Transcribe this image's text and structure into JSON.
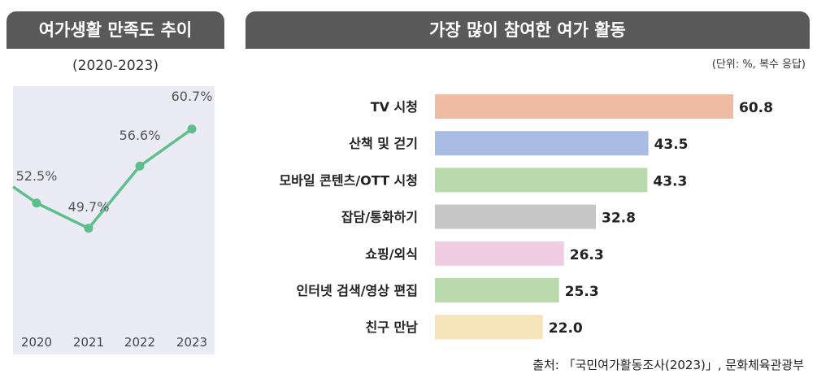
{
  "left": {
    "header": "여가생활 만족도 추이",
    "subtitle": "(2020-2023)"
  },
  "right": {
    "header": "가장 많이 참여한 여가 활동",
    "unit_note": "(단위: %, 복수 응답)"
  },
  "source": "출처: 「국민여가활동조사(2023)」, 문화체육관광부",
  "chart_data": [
    {
      "type": "line",
      "title": "여가생활 만족도 추이",
      "subtitle": "(2020-2023)",
      "categories": [
        "2020",
        "2021",
        "2022",
        "2023"
      ],
      "series": [
        {
          "values": [
            52.5,
            49.7,
            56.6,
            60.7
          ],
          "labels": [
            "52.5%",
            "49.7%",
            "56.6%",
            "60.7%"
          ],
          "color": "#5fbf8a"
        }
      ],
      "ylim": [
        44,
        66
      ],
      "grid": false,
      "background": "#eaebf4"
    },
    {
      "type": "bar",
      "orientation": "horizontal",
      "title": "가장 많이 참여한 여가 활동",
      "unit": "(단위: %, 복수 응답)",
      "categories": [
        "TV 시청",
        "산책 및 걷기",
        "모바일 콘텐츠/OTT 시청",
        "잡담/통화하기",
        "쇼핑/외식",
        "인터넷 검색/영상 편집",
        "친구 만남"
      ],
      "values": [
        60.8,
        43.5,
        43.3,
        32.8,
        26.3,
        25.3,
        22.0
      ],
      "value_labels": [
        "60.8",
        "43.5",
        "43.3",
        "32.8",
        "26.3",
        "25.3",
        "22.0"
      ],
      "colors": [
        "#efbca3",
        "#a9bce3",
        "#b9dbac",
        "#c6c6c6",
        "#f1cde4",
        "#b9dbac",
        "#f6e4b9"
      ],
      "xlim": [
        0,
        60.8
      ],
      "grid": false
    }
  ]
}
